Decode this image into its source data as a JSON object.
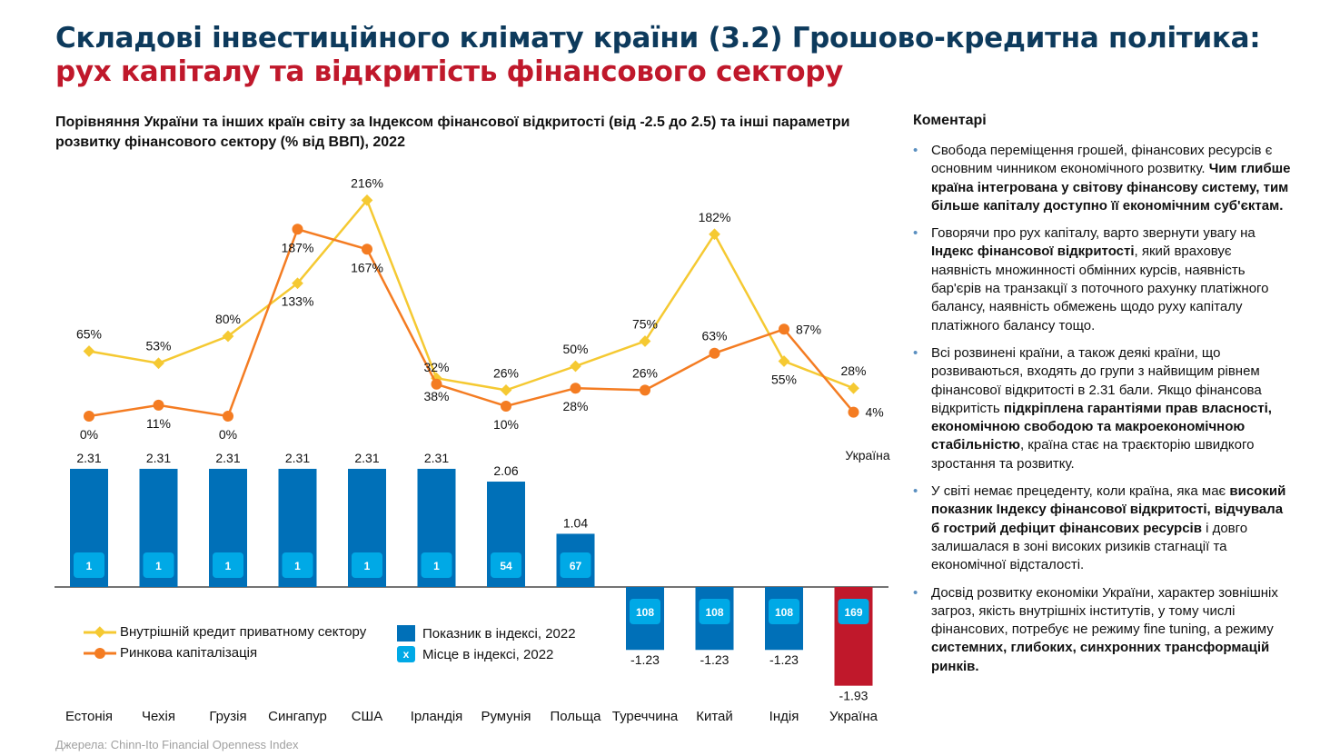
{
  "header": {
    "title_line1": "Складові інвестиційного клімату країни (3.2) Грошово-кредитна політика:",
    "title_line2": "рух капіталу та відкритість фінансового сектору"
  },
  "colors": {
    "title": "#0d3a5c",
    "accent_red": "#c0182b",
    "bar": "#0070b8",
    "rank_box": "#00a9e6",
    "credit_line": "#f5c932",
    "market_cap_line": "#f47c22"
  },
  "chart_data": {
    "type": "bar+line",
    "title": "Порівняння України та інших країн світу за Індексом фінансової відкритості (від -2.5 до 2.5) та інші параметри розвитку фінансового сектору (% від ВВП), 2022",
    "categories": [
      "Естонія",
      "Чехія",
      "Грузія",
      "Сингапур",
      "США",
      "Ірландія",
      "Румунія",
      "Польща",
      "Туреччина",
      "Китай",
      "Індія",
      "Україна"
    ],
    "bar_series": {
      "name": "Показник в індексі, 2022",
      "values": [
        2.31,
        2.31,
        2.31,
        2.31,
        2.31,
        2.31,
        2.06,
        1.04,
        -1.23,
        -1.23,
        -1.23,
        -1.93
      ],
      "labels": [
        "2.31",
        "2.31",
        "2.31",
        "2.31",
        "2.31",
        "2.31",
        "2.06",
        "1.04",
        "-1.23",
        "-1.23",
        "-1.23",
        "-1.93"
      ],
      "highlight": "Україна"
    },
    "rank_series": {
      "name": "Місце в індексі, 2022",
      "values": [
        "1",
        "1",
        "1",
        "1",
        "1",
        "1",
        "54",
        "67",
        "108",
        "108",
        "108",
        "169"
      ]
    },
    "line_series": [
      {
        "name": "Внутрішній кредит приватному сектору",
        "values": [
          65,
          53,
          80,
          133,
          216,
          38,
          26,
          50,
          75,
          182,
          55,
          28
        ],
        "labels": [
          "65%",
          "53%",
          "80%",
          "133%",
          "216%",
          "38%",
          "26%",
          "50%",
          "75%",
          "182%",
          "55%",
          "28%"
        ],
        "marker": "diamond"
      },
      {
        "name": "Ринкова капіталізація",
        "values": [
          0,
          11,
          0,
          187,
          167,
          32,
          10,
          28,
          26,
          63,
          87,
          4
        ],
        "labels": [
          "0%",
          "11%",
          "0%",
          "187%",
          "167%",
          "32%",
          "10%",
          "28%",
          "26%",
          "63%",
          "87%",
          "4%"
        ],
        "marker": "circle"
      }
    ],
    "annotation": "Україна",
    "legend": {
      "placement": "bottom-left",
      "rank_symbol": "x"
    }
  },
  "comments": {
    "title": "Коментарі",
    "items": [
      [
        {
          "t": "Свобода переміщення грошей, фінансових ресурсів є основним чинником економічного розвитку. ",
          "b": false
        },
        {
          "t": "Чим глибше країна інтегрована у світову фінансову систему, тим більше капіталу доступно її економічним суб'єктам.",
          "b": true
        }
      ],
      [
        {
          "t": "Говорячи про рух капіталу, варто звернути увагу на ",
          "b": false
        },
        {
          "t": "Індекс фінансової відкритості",
          "b": true
        },
        {
          "t": ", який враховує наявність множинності обмінних курсів, наявність бар'єрів на транзакції з поточного рахунку платіжного балансу, наявність обмежень щодо руху капіталу платіжного балансу тощо.",
          "b": false
        }
      ],
      [
        {
          "t": "Всі розвинені країни, а також деякі країни, що розвиваються, входять до групи з найвищим рівнем фінансової відкритості в 2.31 бали. Якщо фінансова відкритість ",
          "b": false
        },
        {
          "t": "підкріплена гарантіями прав власності, економічною свободою та макроекономічною стабільністю",
          "b": true
        },
        {
          "t": ", країна стає на траєкторію швидкого зростання та розвитку.",
          "b": false
        }
      ],
      [
        {
          "t": "У світі немає прецеденту, коли країна, яка має ",
          "b": false
        },
        {
          "t": "високий показник Індексу фінансової відкритості, відчувала б гострий дефіцит фінансових ресурсів",
          "b": true
        },
        {
          "t": " і довго залишалася в зоні високих ризиків стагнації та економічної відсталості.",
          "b": false
        }
      ],
      [
        {
          "t": "Досвід розвитку економіки України, характер зовнішніх загроз, якість внутрішніх інститутів, у тому числі фінансових, потребує не режиму fine tuning, а режиму ",
          "b": false
        },
        {
          "t": "системних, глибоких, синхронних трансформацій ринків.",
          "b": true
        }
      ]
    ]
  },
  "source": "Джерела: Chinn-Ito Financial Openness Index"
}
